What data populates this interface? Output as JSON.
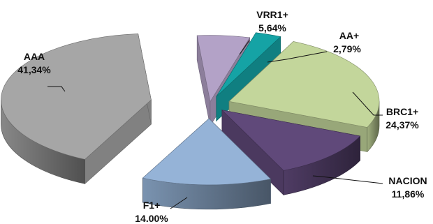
{
  "chart_data": {
    "type": "pie",
    "style": "3d-exploded",
    "slices": [
      {
        "name": "VRR1+",
        "value_label": "5,64%",
        "value": 5.64,
        "color": "#B3A2C7"
      },
      {
        "name": "AA+",
        "value_label": "2,79%",
        "value": 2.79,
        "color": "#15A3A5"
      },
      {
        "name": "BRC1+",
        "value_label": "24,37%",
        "value": 24.37,
        "color": "#C3D69B"
      },
      {
        "name": "NACION",
        "value_label": "11,86%",
        "value": 11.86,
        "color": "#60497A"
      },
      {
        "name": "F1+",
        "value_label": "14.00%",
        "value": 14.0,
        "color": "#95B3D7"
      },
      {
        "name": "AAA",
        "value_label": "41,34%",
        "value": 41.34,
        "color": "#A6A6A6"
      }
    ]
  }
}
